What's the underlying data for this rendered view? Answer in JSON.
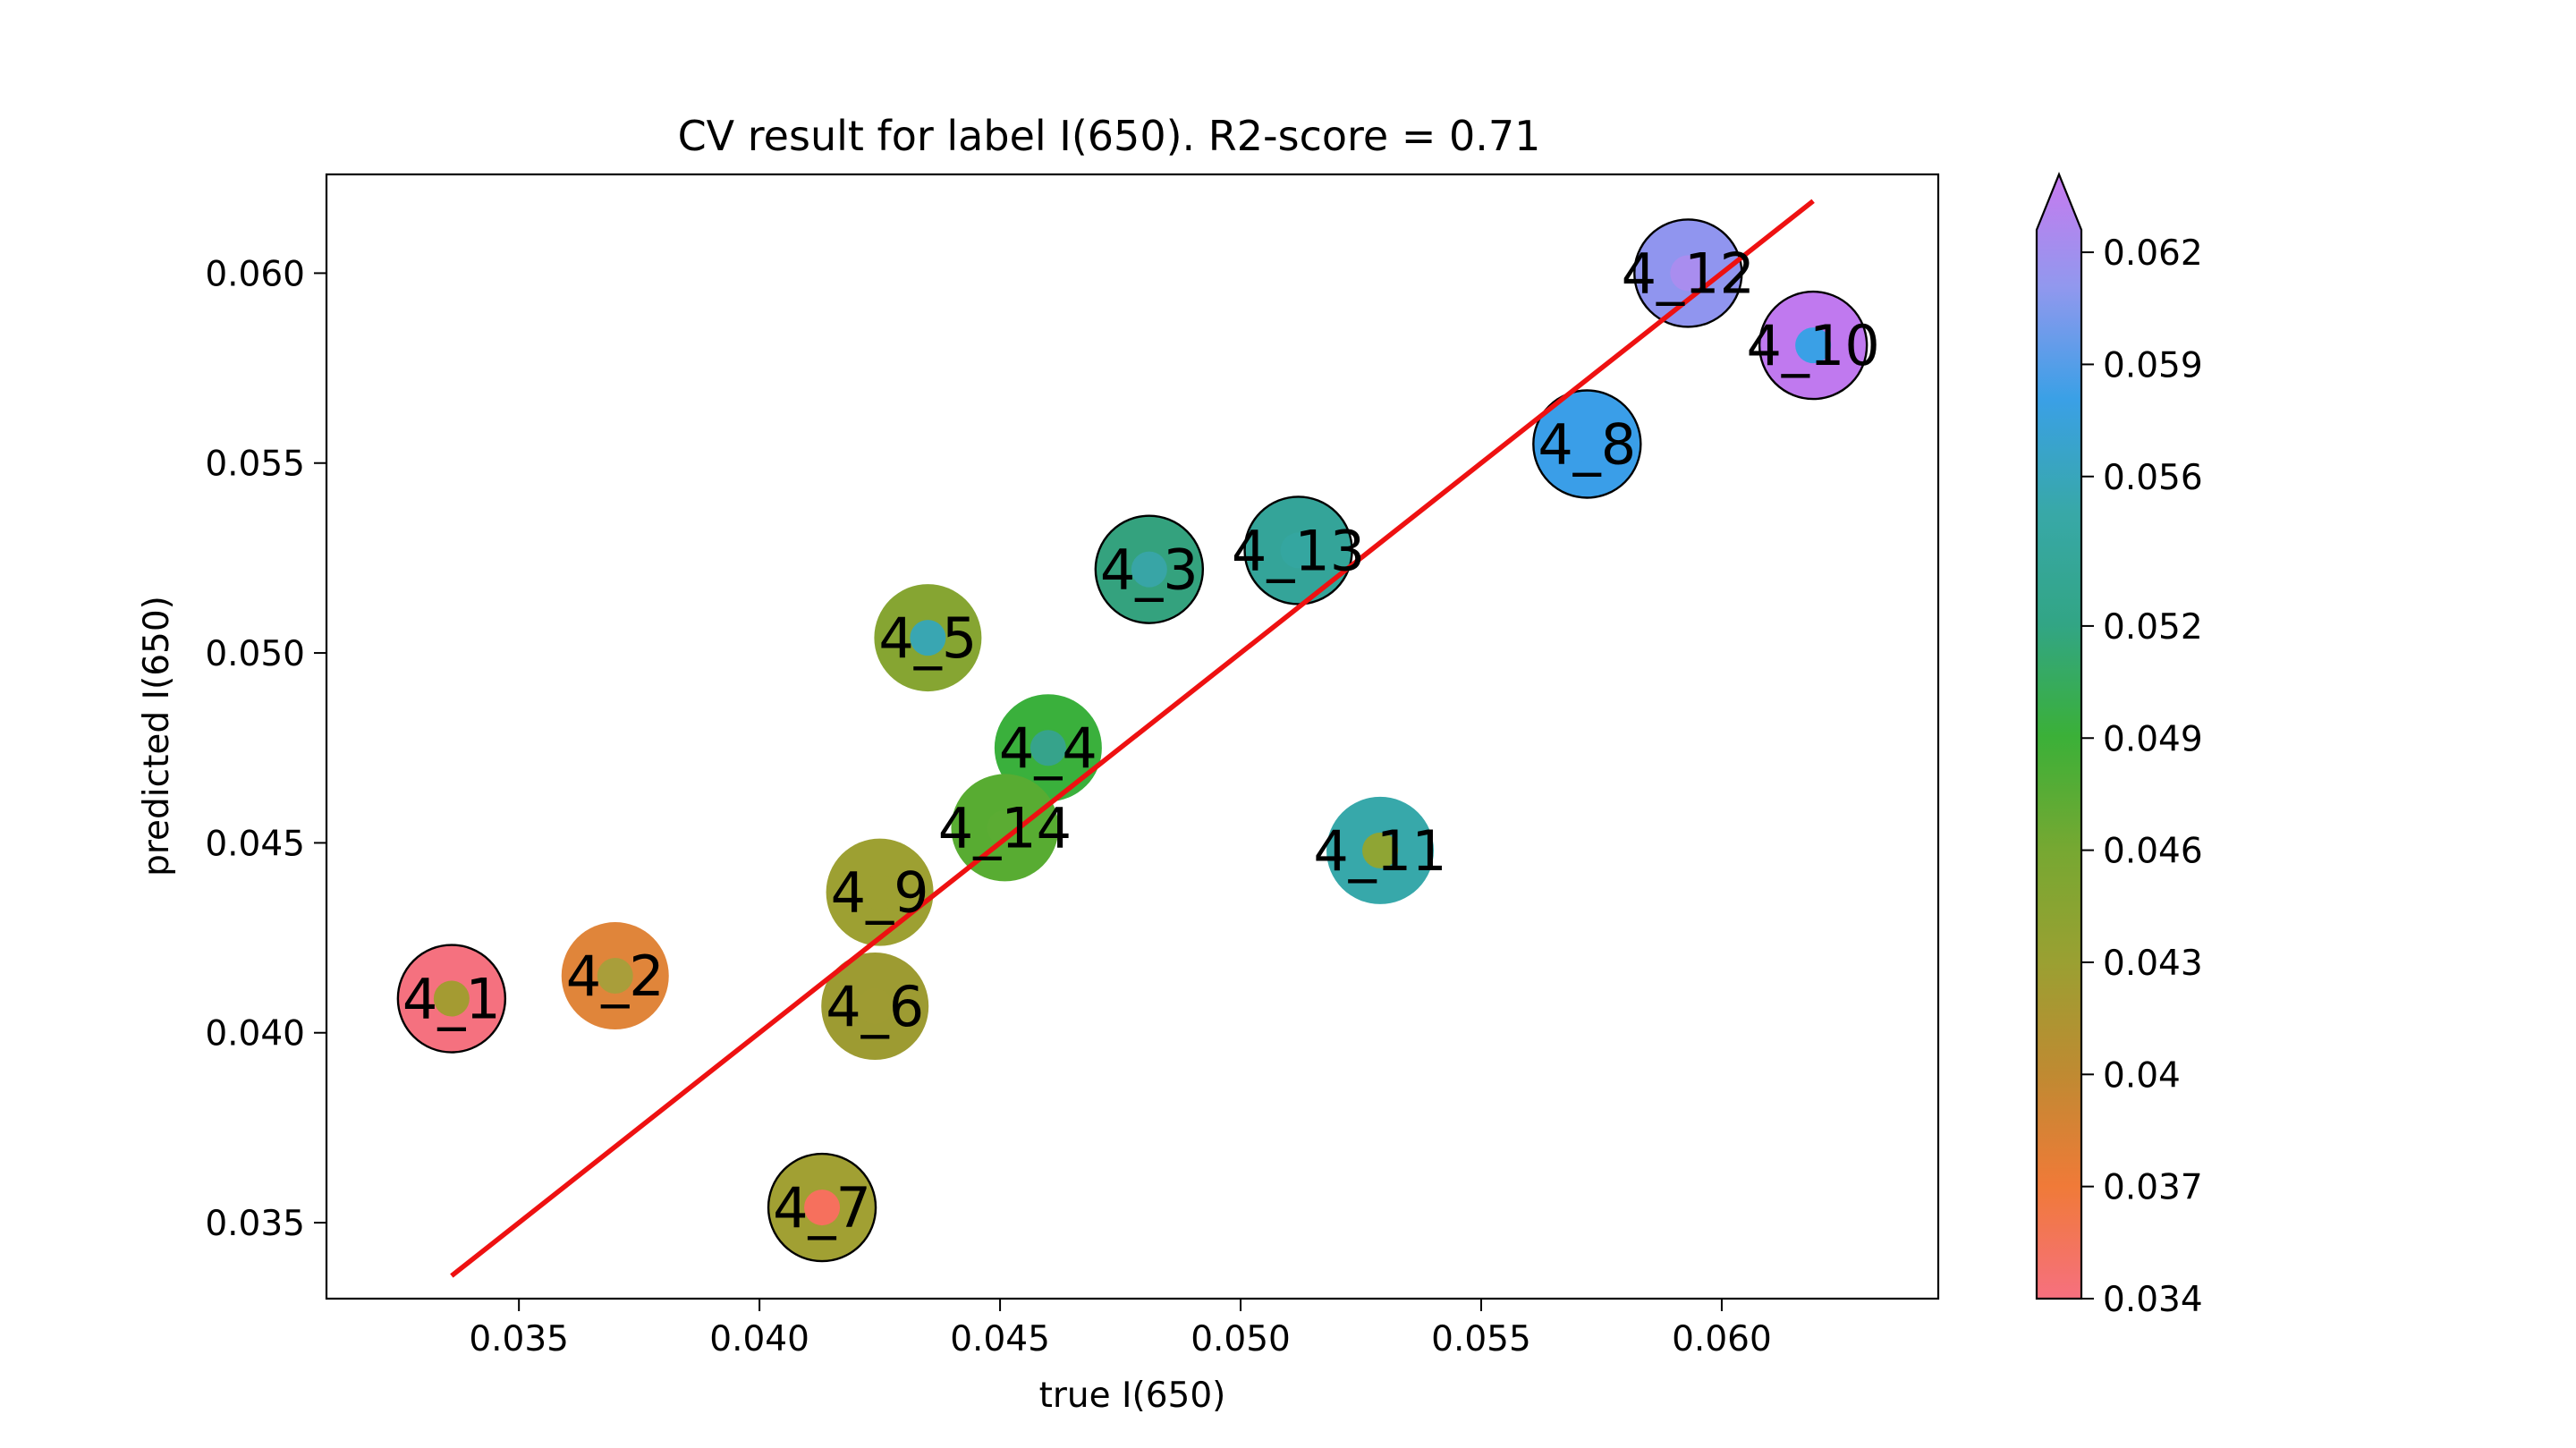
{
  "chart_data": {
    "type": "scatter",
    "title": "CV result for label I(650). R2-score = 0.71",
    "xlabel": "true I(650)",
    "ylabel": "predicted I(650)",
    "xlim": [
      0.031,
      0.0645
    ],
    "ylim": [
      0.033,
      0.0626
    ],
    "x_ticks": [
      0.035,
      0.04,
      0.045,
      0.05,
      0.055,
      0.06
    ],
    "x_tick_labels": [
      "0.035",
      "0.040",
      "0.045",
      "0.050",
      "0.055",
      "0.060"
    ],
    "y_ticks": [
      0.035,
      0.04,
      0.045,
      0.05,
      0.055,
      0.06
    ],
    "y_tick_labels": [
      "0.035",
      "0.040",
      "0.045",
      "0.050",
      "0.055",
      "0.060"
    ],
    "grid": false,
    "fit_line": {
      "x": [
        0.0336,
        0.0619
      ],
      "y": [
        0.0336,
        0.0619
      ],
      "color": "#ee1111"
    },
    "colorbar": {
      "min": 0.034,
      "max": 0.0626,
      "extend": "max",
      "ticks": [
        0.034,
        0.037,
        0.04,
        0.043,
        0.046,
        0.049,
        0.052,
        0.056,
        0.059,
        0.062
      ],
      "tick_labels": [
        "0.034",
        "0.037",
        "0.04",
        "0.043",
        "0.046",
        "0.049",
        "0.052",
        "0.056",
        "0.059",
        "0.062"
      ],
      "colors": [
        "#f6707f",
        "#f07a38",
        "#bf8a32",
        "#9aa032",
        "#76a832",
        "#3bb038",
        "#32a585",
        "#38a8a8",
        "#3aa0e6",
        "#9198ee",
        "#c77aef"
      ]
    },
    "points": [
      {
        "label": "4_1",
        "x": 0.0336,
        "y": 0.0409,
        "color": "#f5717f",
        "inner_color": "#a49b32",
        "edge": true
      },
      {
        "label": "4_2",
        "x": 0.037,
        "y": 0.0415,
        "color": "#e0853a",
        "inner_color": "#a99e3a",
        "edge": false
      },
      {
        "label": "4_3",
        "x": 0.0481,
        "y": 0.0522,
        "color": "#34a27e",
        "inner_color": "#38a5a6",
        "edge": true
      },
      {
        "label": "4_4",
        "x": 0.046,
        "y": 0.0475,
        "color": "#3ab03c",
        "inner_color": "#36a38b",
        "edge": false
      },
      {
        "label": "4_5",
        "x": 0.0435,
        "y": 0.0504,
        "color": "#86a532",
        "inner_color": "#39a6b2",
        "edge": false
      },
      {
        "label": "4_6",
        "x": 0.0424,
        "y": 0.0407,
        "color": "#9d9b32",
        "inner_color": "#9e9b32",
        "edge": false
      },
      {
        "label": "4_7",
        "x": 0.0413,
        "y": 0.0354,
        "color": "#a1a033",
        "inner_color": "#f6705d",
        "edge": true
      },
      {
        "label": "4_8",
        "x": 0.0572,
        "y": 0.0555,
        "color": "#3a9ee8",
        "inner_color": "#3a9ee8",
        "edge": true
      },
      {
        "label": "4_9",
        "x": 0.0425,
        "y": 0.0437,
        "color": "#9da032",
        "inner_color": "#9da032",
        "edge": false
      },
      {
        "label": "4_10",
        "x": 0.0619,
        "y": 0.0581,
        "color": "#c079ef",
        "inner_color": "#3aa0e6",
        "edge": true
      },
      {
        "label": "4_11",
        "x": 0.0529,
        "y": 0.0448,
        "color": "#37a8aa",
        "inner_color": "#8fa534",
        "edge": false
      },
      {
        "label": "4_12",
        "x": 0.0593,
        "y": 0.06,
        "color": "#9095ef",
        "inner_color": "#a98def",
        "edge": true
      },
      {
        "label": "4_13",
        "x": 0.0512,
        "y": 0.0527,
        "color": "#34a499",
        "inner_color": "#34a6a0",
        "edge": true
      },
      {
        "label": "4_14",
        "x": 0.0451,
        "y": 0.0454,
        "color": "#58ac32",
        "inner_color": "#5bac33",
        "edge": false
      }
    ]
  }
}
